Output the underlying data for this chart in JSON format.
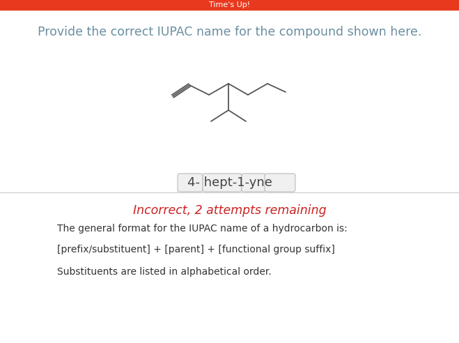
{
  "header_text": "Time's Up!",
  "header_bg": "#e8391e",
  "header_text_color": "#ffffff",
  "question_text": "Provide the correct IUPAC name for the compound shown here.",
  "question_color": "#6a8fa0",
  "answer_text": "4- hept-1-yne",
  "answer_color": "#444444",
  "incorrect_text": "Incorrect, 2 attempts remaining",
  "incorrect_color": "#cc2222",
  "hint_line1": "The general format for the IUPAC name of a hydrocarbon is:",
  "hint_line2": "[prefix/substituent] + [parent] + [functional group suffix]",
  "hint_line3": "Substituents are listed in alphabetical order.",
  "hint_color": "#333333",
  "bg_color": "#ffffff",
  "divider_color": "#cccccc",
  "molecule_line_color": "#555555",
  "answer_box_fill": "#f0f0f0",
  "answer_box_edge": "#bbbbbb"
}
